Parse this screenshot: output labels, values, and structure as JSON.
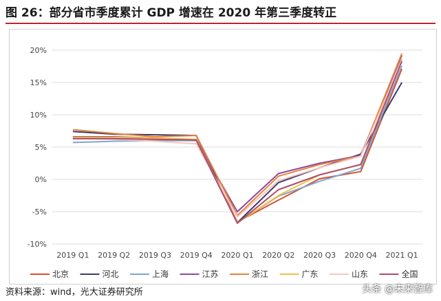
{
  "title": "图 26：部分省市季度累计 GDP 增速在 2020 年第三季度转正",
  "source": "资料来源：wind，光大证券研究所",
  "watermark": "头条 @未来智库",
  "chart_data": {
    "type": "line",
    "categories": [
      "2019 Q1",
      "2019 Q2",
      "2019 Q3",
      "2019 Q4",
      "2020 Q1",
      "2020 Q2",
      "2020 Q3",
      "2020 Q4",
      "2021 Q1"
    ],
    "ylim": [
      -10,
      20
    ],
    "yticks": [
      -10,
      -5,
      0,
      5,
      10,
      15,
      20
    ],
    "ytick_labels": [
      "-10%",
      "-5%",
      "0%",
      "5%",
      "10%",
      "15%",
      "20%"
    ],
    "grid": true,
    "legend_position": "bottom",
    "series": [
      {
        "name": "北京",
        "color": "#d94f2a",
        "values": [
          6.4,
          6.3,
          6.2,
          6.1,
          -6.6,
          -3.2,
          0.1,
          1.2,
          17.1
        ]
      },
      {
        "name": "河北",
        "color": "#3b3b6b",
        "values": [
          7.4,
          7.0,
          6.9,
          6.8,
          -6.7,
          -0.5,
          1.8,
          3.9,
          15.0
        ]
      },
      {
        "name": "上海",
        "color": "#7ba7cf",
        "values": [
          5.7,
          5.9,
          6.0,
          6.0,
          -6.7,
          -2.6,
          -0.3,
          1.7,
          17.6
        ]
      },
      {
        "name": "江苏",
        "color": "#8b4a9c",
        "values": [
          6.6,
          6.6,
          6.4,
          6.1,
          -5.0,
          0.9,
          2.5,
          3.7,
          19.2
        ]
      },
      {
        "name": "浙江",
        "color": "#e8823b",
        "values": [
          7.7,
          7.1,
          6.6,
          6.8,
          -5.6,
          0.5,
          2.3,
          3.6,
          19.5
        ]
      },
      {
        "name": "广东",
        "color": "#f0c040",
        "values": [
          6.5,
          6.5,
          6.4,
          6.2,
          -6.7,
          -2.5,
          0.7,
          2.3,
          18.6
        ]
      },
      {
        "name": "山东",
        "color": "#f6c6c0",
        "values": [
          6.3,
          6.2,
          5.9,
          5.5,
          -5.8,
          -0.2,
          1.8,
          3.6,
          18.4
        ]
      },
      {
        "name": "全国",
        "color": "#b04a6b",
        "values": [
          6.3,
          6.3,
          6.2,
          6.1,
          -6.8,
          -1.6,
          0.7,
          2.3,
          18.3
        ]
      }
    ]
  }
}
